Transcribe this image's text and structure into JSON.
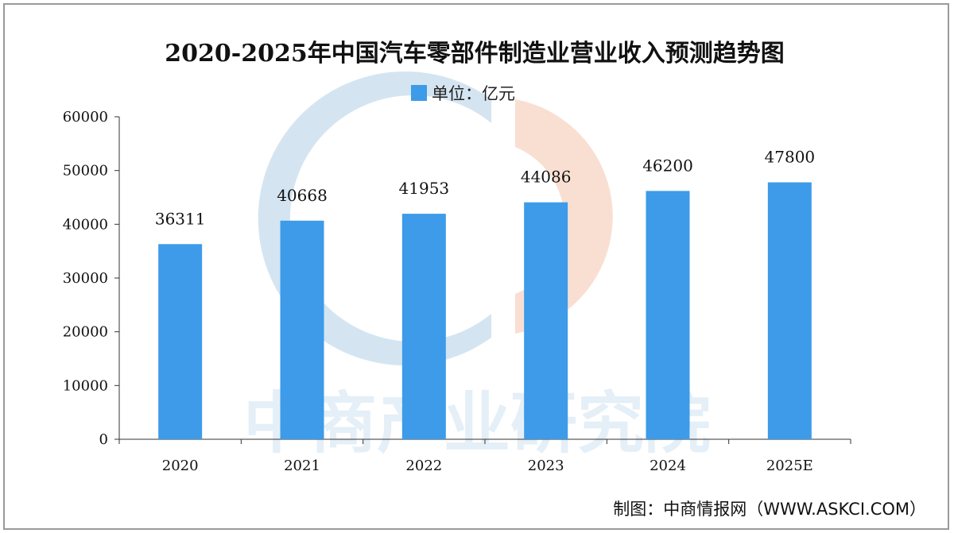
{
  "colors": {
    "bar": "#3d9be9",
    "axis": "#333333",
    "watermark_blue": "#c5dcec",
    "watermark_orange": "#f7d7c7"
  },
  "watermark": {
    "text": "中商产业研究院"
  },
  "source": {
    "text": "制图：中商情报网（WWW.ASKCI.COM）"
  },
  "chart_data": {
    "type": "bar",
    "title": "2020-2025年中国汽车零部件制造业营业收入预测趋势图",
    "legend": {
      "label": "单位：亿元",
      "position": "top-center"
    },
    "categories": [
      "2020",
      "2021",
      "2022",
      "2023",
      "2024",
      "2025E"
    ],
    "series": [
      {
        "name": "单位：亿元",
        "values": [
          36311,
          40668,
          41953,
          44086,
          46200,
          47800
        ]
      }
    ],
    "data_labels": [
      "36311",
      "40668",
      "41953",
      "44086",
      "46200",
      "47800"
    ],
    "yticks": [
      "0",
      "10000",
      "20000",
      "30000",
      "40000",
      "50000",
      "60000"
    ],
    "ylim": [
      0,
      60000
    ],
    "xlabel": "",
    "ylabel": "",
    "grid": false
  }
}
